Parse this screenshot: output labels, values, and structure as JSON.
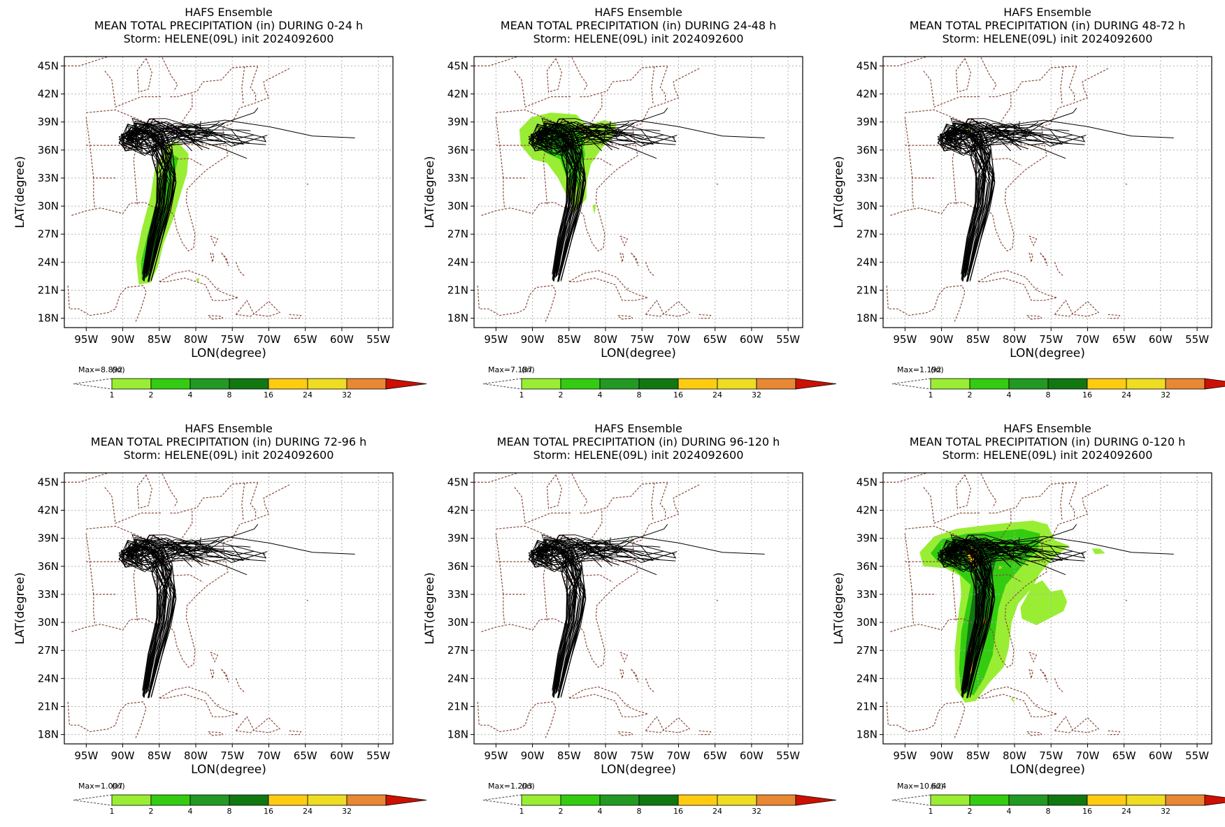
{
  "common": {
    "model": "HAFS Ensemble",
    "storm_line": "Storm: HELENE(09L) init 2024092600",
    "xlabel": "LON(degree)",
    "ylabel": "LAT(degree)",
    "lon_ticks": [
      "95W",
      "90W",
      "85W",
      "80W",
      "75W",
      "70W",
      "65W",
      "60W",
      "55W"
    ],
    "lat_ticks": [
      "45N",
      "42N",
      "39N",
      "36N",
      "33N",
      "30N",
      "27N",
      "24N",
      "21N",
      "18N"
    ],
    "colorbar": {
      "unit": "(in)",
      "labels": [
        "1",
        "2",
        "4",
        "8",
        "16",
        "24",
        "32"
      ],
      "colors": [
        "#99ee33",
        "#33cc11",
        "#229922",
        "#117711",
        "#ffcc11",
        "#eedd22",
        "#e88833",
        "#cc1100"
      ]
    }
  },
  "panels": [
    {
      "title": "MEAN TOTAL PRECIPITATION (in) DURING  0-24 h",
      "max_label": "Max=8.892",
      "rain": "p1"
    },
    {
      "title": "MEAN TOTAL PRECIPITATION (in) DURING 24-48 h",
      "max_label": "Max=7.187",
      "rain": "p2"
    },
    {
      "title": "MEAN TOTAL PRECIPITATION (in) DURING 48-72 h",
      "max_label": "Max=1.192",
      "rain": "p3"
    },
    {
      "title": "MEAN TOTAL PRECIPITATION (in) DURING 72-96 h",
      "max_label": "Max=1.007",
      "rain": "p4"
    },
    {
      "title": "MEAN TOTAL PRECIPITATION (in) DURING 96-120 h",
      "max_label": "Max=1.203",
      "rain": "p5"
    },
    {
      "title": "MEAN TOTAL PRECIPITATION (in) DURING 0-120 h",
      "max_label": "Max=10.624",
      "rain": "p6"
    }
  ]
}
